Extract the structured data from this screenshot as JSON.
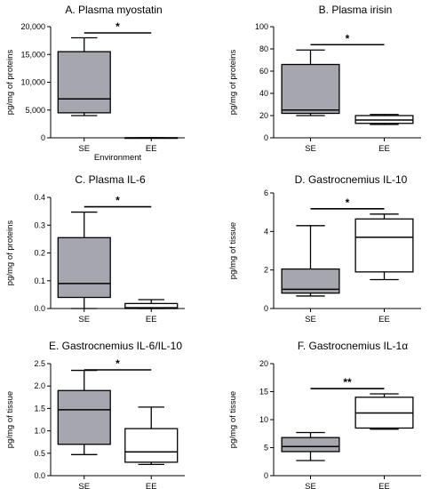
{
  "chart_data": [
    {
      "type": "box",
      "title": "A. Plasma myostatin",
      "ylabel": "pg/mg of proteins",
      "xlabel": "Environment",
      "ylim": [
        0,
        20000
      ],
      "ticks": [
        0,
        5000,
        10000,
        15000,
        20000
      ],
      "tick_labels": [
        "0",
        "5,000",
        "10,000",
        "15,000",
        "20,000"
      ],
      "categories": [
        "SE",
        "EE"
      ],
      "boxes": [
        {
          "min": 4000,
          "q1": 4500,
          "median": 7000,
          "q3": 15500,
          "max": 18000
        },
        {
          "min": 0,
          "q1": 0,
          "median": 0,
          "q3": 0,
          "max": 0
        }
      ],
      "significance": "*",
      "colors": {
        "SE": "#a6a6ae",
        "EE": "#ffffff"
      }
    },
    {
      "type": "box",
      "title": "B. Plasma irisin",
      "ylabel": "pg/mg of proteins",
      "xlabel": "",
      "ylim": [
        0,
        100
      ],
      "ticks": [
        0,
        20,
        40,
        60,
        80,
        100
      ],
      "tick_labels": [
        "0",
        "20",
        "40",
        "60",
        "80",
        "100"
      ],
      "categories": [
        "SE",
        "EE"
      ],
      "boxes": [
        {
          "min": 20,
          "q1": 22,
          "median": 25,
          "q3": 66,
          "max": 79
        },
        {
          "min": 12,
          "q1": 13,
          "median": 16,
          "q3": 20,
          "max": 21
        }
      ],
      "significance": "*",
      "colors": {
        "SE": "#a6a6ae",
        "EE": "#ffffff"
      }
    },
    {
      "type": "box",
      "title": "C. Plasma IL-6",
      "ylabel": "pg/mg of proteins",
      "xlabel": "",
      "ylim": [
        0,
        0.4
      ],
      "ticks": [
        0,
        0.1,
        0.2,
        0.3,
        0.4
      ],
      "tick_labels": [
        "0.0",
        "0.1",
        "0.2",
        "0.3",
        "0.4"
      ],
      "categories": [
        "SE",
        "EE"
      ],
      "boxes": [
        {
          "min": 0.0,
          "q1": 0.04,
          "median": 0.09,
          "q3": 0.255,
          "max": 0.347
        },
        {
          "min": 0.0,
          "q1": 0.0,
          "median": 0.003,
          "q3": 0.018,
          "max": 0.032
        }
      ],
      "significance": "*",
      "colors": {
        "SE": "#a6a6ae",
        "EE": "#ffffff"
      }
    },
    {
      "type": "box",
      "title": "D. Gastrocnemius IL-10",
      "ylabel": "pg/mg of tissue",
      "xlabel": "",
      "ylim": [
        0,
        6
      ],
      "ticks": [
        0,
        2,
        4,
        6
      ],
      "tick_labels": [
        "0",
        "2",
        "4",
        "6"
      ],
      "categories": [
        "SE",
        "EE"
      ],
      "boxes": [
        {
          "min": 0.65,
          "q1": 0.8,
          "median": 1.0,
          "q3": 2.05,
          "max": 4.3
        },
        {
          "min": 1.5,
          "q1": 1.9,
          "median": 3.7,
          "q3": 4.65,
          "max": 4.9
        }
      ],
      "significance": "*",
      "colors": {
        "SE": "#a6a6ae",
        "EE": "#ffffff"
      }
    },
    {
      "type": "box",
      "title": "E. Gastrocnemius IL-6/IL-10",
      "ylabel": "pg/mg of tissue",
      "xlabel": "",
      "ylim": [
        0,
        2.5
      ],
      "ticks": [
        0,
        0.5,
        1.0,
        1.5,
        2.0,
        2.5
      ],
      "tick_labels": [
        "0.0",
        "0.5",
        "1.0",
        "1.5",
        "2.0",
        "2.5"
      ],
      "categories": [
        "SE",
        "EE"
      ],
      "boxes": [
        {
          "min": 0.47,
          "q1": 0.7,
          "median": 1.47,
          "q3": 1.9,
          "max": 2.35
        },
        {
          "min": 0.25,
          "q1": 0.3,
          "median": 0.53,
          "q3": 1.05,
          "max": 1.53
        }
      ],
      "significance": "*",
      "colors": {
        "SE": "#a6a6ae",
        "EE": "#ffffff"
      }
    },
    {
      "type": "box",
      "title": "F. Gastrocnemius IL-1α",
      "ylabel": "pg/mg of tissue",
      "xlabel": "",
      "ylim": [
        0,
        20
      ],
      "ticks": [
        0,
        5,
        10,
        15,
        20
      ],
      "tick_labels": [
        "0",
        "5",
        "10",
        "15",
        "20"
      ],
      "categories": [
        "SE",
        "EE"
      ],
      "boxes": [
        {
          "min": 2.7,
          "q1": 4.3,
          "median": 5.2,
          "q3": 6.8,
          "max": 7.7
        },
        {
          "min": 8.3,
          "q1": 8.5,
          "median": 11.2,
          "q3": 14.0,
          "max": 14.6
        }
      ],
      "significance": "**",
      "colors": {
        "SE": "#a6a6ae",
        "EE": "#ffffff"
      }
    }
  ]
}
